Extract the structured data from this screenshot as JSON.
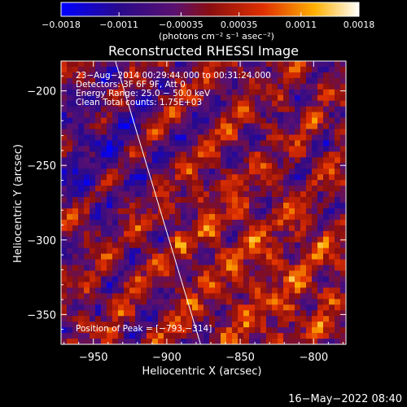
{
  "chart_data": {
    "type": "heatmap",
    "title": "Reconstructed RHESSI Image",
    "xlabel": "Heliocentric X (arcsec)",
    "ylabel": "Heliocentric Y (arcsec)",
    "xlim": [
      -972,
      -778
    ],
    "ylim": [
      -370,
      -180
    ],
    "x_ticks": [
      "−950",
      "−900",
      "−850",
      "−800"
    ],
    "x_tick_values": [
      -950,
      -900,
      -850,
      -800
    ],
    "y_ticks": [
      "−200",
      "−250",
      "−300",
      "−350"
    ],
    "y_tick_values": [
      -200,
      -250,
      -300,
      -350
    ],
    "colorbar": {
      "range": [
        -0.0018,
        0.0018
      ],
      "ticks": [
        "−0.0018",
        "−0.0011",
        "−0.00035",
        "0.00035",
        "0.0011",
        "0.0018"
      ],
      "tick_values": [
        -0.0018,
        -0.0011,
        -0.00035,
        0.00035,
        0.0011,
        0.0018
      ],
      "unit_label": "(photons cm⁻² s⁻¹ asec⁻²)"
    },
    "info_lines": [
      "23−Aug−2014 00:29:44.000 to 00:31:24.000",
      "Detectors: 3F 6F 9F, Att 0",
      "Energy Range: 25.0 − 50.0 keV",
      "Clean     Total counts: 1.75E+03"
    ],
    "peak_text": "Position of Peak = [−793,−314]",
    "limb_line": [
      [
        -935,
        -180
      ],
      [
        -877,
        -370
      ]
    ],
    "timestamp": "16−May−2022 08:40"
  }
}
